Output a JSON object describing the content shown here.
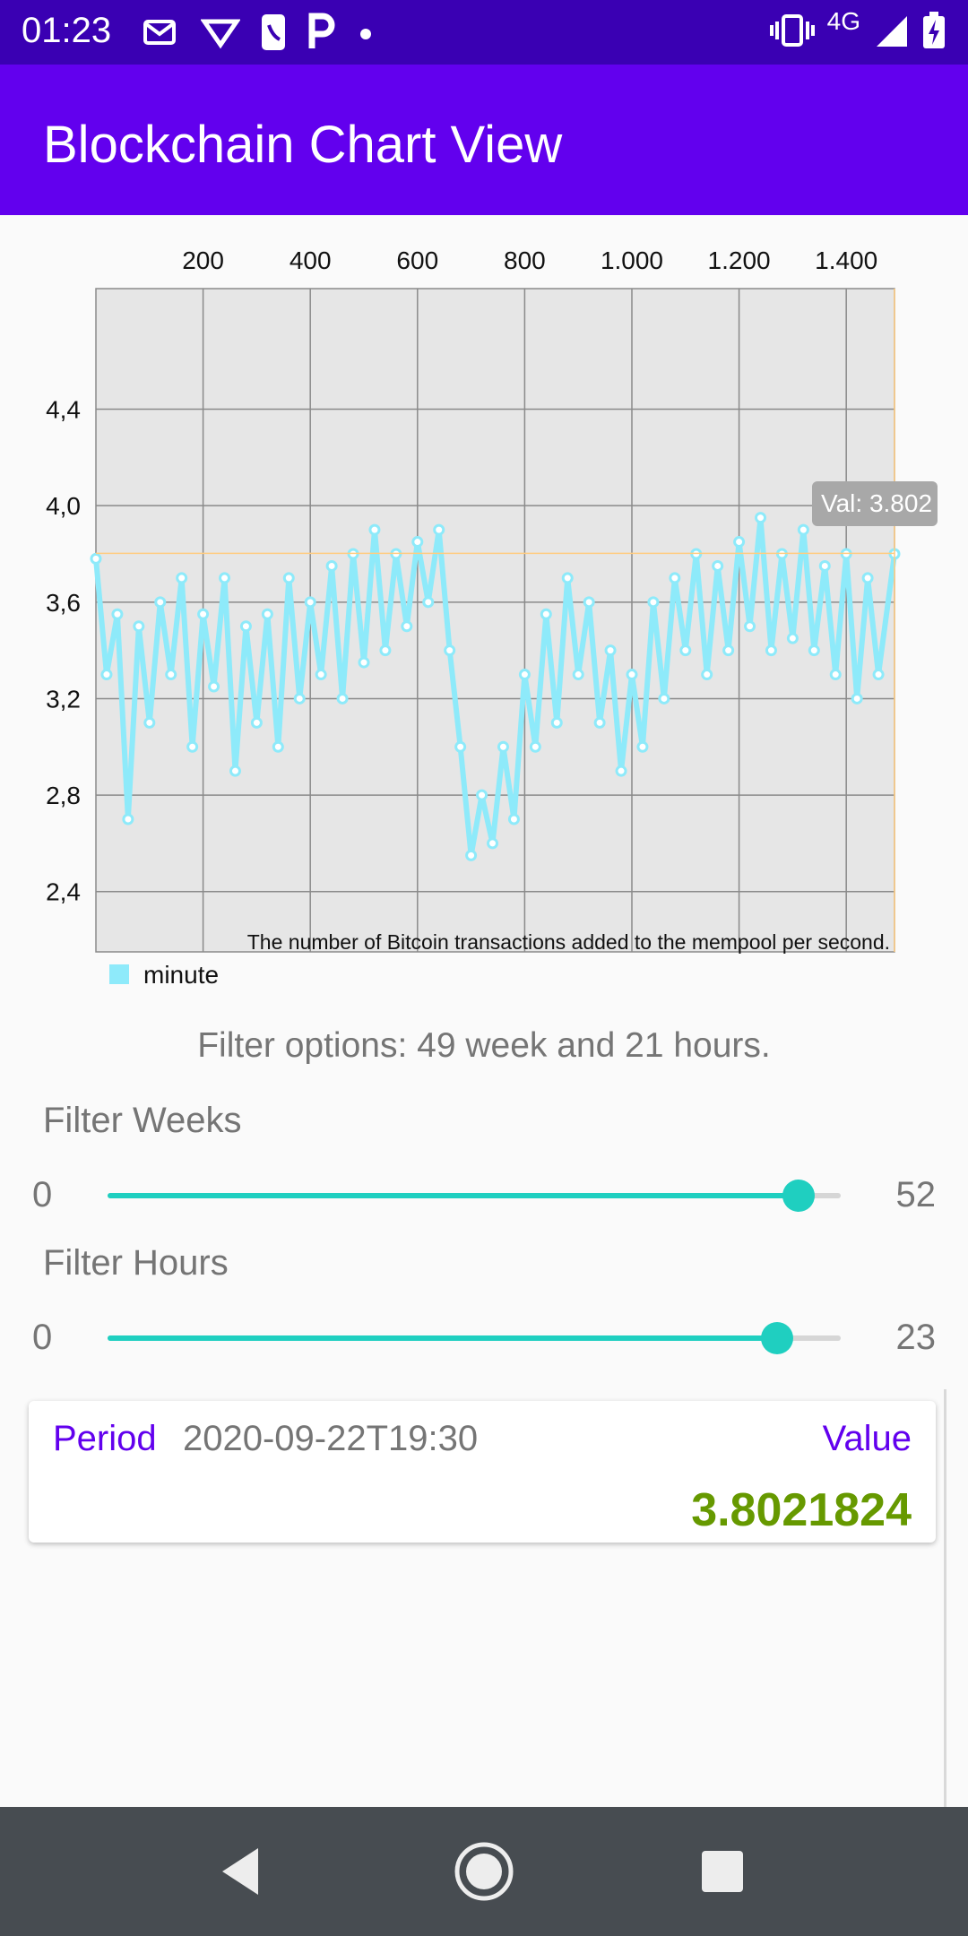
{
  "status_bar": {
    "time": "01:23",
    "network": "4G",
    "left_icons": [
      "envelope-icon",
      "vee-icon",
      "phone-icon",
      "parking-icon",
      "dot-icon"
    ],
    "right_icons": [
      "vibrate-icon",
      "signal-icon",
      "battery-charging-icon"
    ]
  },
  "app_bar": {
    "title": "Blockchain Chart View",
    "color": "#6200ee"
  },
  "chart_data": {
    "type": "line",
    "description": "The number of Bitcoin transactions added to the mempool per second.",
    "xlim": [
      0,
      1490
    ],
    "ylim": [
      2.15,
      4.9
    ],
    "x_ticks": [
      200,
      400,
      600,
      800,
      1000,
      1200,
      1400
    ],
    "x_tick_labels": [
      "200",
      "400",
      "600",
      "800",
      "1.000",
      "1.200",
      "1.400"
    ],
    "y_ticks": [
      2.4,
      2.8,
      3.2,
      3.6,
      4.0,
      4.4
    ],
    "y_tick_labels": [
      "2,4",
      "2,8",
      "3,2",
      "3,6",
      "4,0",
      "4,4"
    ],
    "legend": {
      "label": "minute",
      "color": "#8eeafa",
      "position": "bottom-left"
    },
    "highlight": {
      "x": 1490,
      "y": 3.8021824,
      "label": "Val: 3.802"
    },
    "series": [
      {
        "name": "minute",
        "color": "#8eeafa",
        "points": [
          [
            0,
            3.78
          ],
          [
            20,
            3.3
          ],
          [
            40,
            3.55
          ],
          [
            60,
            2.7
          ],
          [
            80,
            3.5
          ],
          [
            100,
            3.1
          ],
          [
            120,
            3.6
          ],
          [
            140,
            3.3
          ],
          [
            160,
            3.7
          ],
          [
            180,
            3.0
          ],
          [
            200,
            3.55
          ],
          [
            220,
            3.25
          ],
          [
            240,
            3.7
          ],
          [
            260,
            2.9
          ],
          [
            280,
            3.5
          ],
          [
            300,
            3.1
          ],
          [
            320,
            3.55
          ],
          [
            340,
            3.0
          ],
          [
            360,
            3.7
          ],
          [
            380,
            3.2
          ],
          [
            400,
            3.6
          ],
          [
            420,
            3.3
          ],
          [
            440,
            3.75
          ],
          [
            460,
            3.2
          ],
          [
            480,
            3.8
          ],
          [
            500,
            3.35
          ],
          [
            520,
            3.9
          ],
          [
            540,
            3.4
          ],
          [
            560,
            3.8
          ],
          [
            580,
            3.5
          ],
          [
            600,
            3.85
          ],
          [
            620,
            3.6
          ],
          [
            640,
            3.9
          ],
          [
            660,
            3.4
          ],
          [
            680,
            3.0
          ],
          [
            700,
            2.55
          ],
          [
            720,
            2.8
          ],
          [
            740,
            2.6
          ],
          [
            760,
            3.0
          ],
          [
            780,
            2.7
          ],
          [
            800,
            3.3
          ],
          [
            820,
            3.0
          ],
          [
            840,
            3.55
          ],
          [
            860,
            3.1
          ],
          [
            880,
            3.7
          ],
          [
            900,
            3.3
          ],
          [
            920,
            3.6
          ],
          [
            940,
            3.1
          ],
          [
            960,
            3.4
          ],
          [
            980,
            2.9
          ],
          [
            1000,
            3.3
          ],
          [
            1020,
            3.0
          ],
          [
            1040,
            3.6
          ],
          [
            1060,
            3.2
          ],
          [
            1080,
            3.7
          ],
          [
            1100,
            3.4
          ],
          [
            1120,
            3.8
          ],
          [
            1140,
            3.3
          ],
          [
            1160,
            3.75
          ],
          [
            1180,
            3.4
          ],
          [
            1200,
            3.85
          ],
          [
            1220,
            3.5
          ],
          [
            1240,
            3.95
          ],
          [
            1260,
            3.4
          ],
          [
            1280,
            3.8
          ],
          [
            1300,
            3.45
          ],
          [
            1320,
            3.9
          ],
          [
            1340,
            3.4
          ],
          [
            1360,
            3.75
          ],
          [
            1380,
            3.3
          ],
          [
            1400,
            3.8
          ],
          [
            1420,
            3.2
          ],
          [
            1440,
            3.7
          ],
          [
            1460,
            3.3
          ],
          [
            1490,
            3.8
          ]
        ]
      }
    ]
  },
  "filter": {
    "summary": "Filter options: 49 week and 21 hours.",
    "weeks": {
      "label": "Filter Weeks",
      "min": "0",
      "max": "52",
      "value": 49
    },
    "hours": {
      "label": "Filter Hours",
      "min": "0",
      "max": "23",
      "value": 21
    }
  },
  "detail_card": {
    "period_label": "Period",
    "period_value": "2020-09-22T19:30",
    "value_label": "Value",
    "value": "3.8021824"
  },
  "nav_bar": {
    "buttons": [
      "back-icon",
      "home-icon",
      "recents-icon"
    ]
  }
}
